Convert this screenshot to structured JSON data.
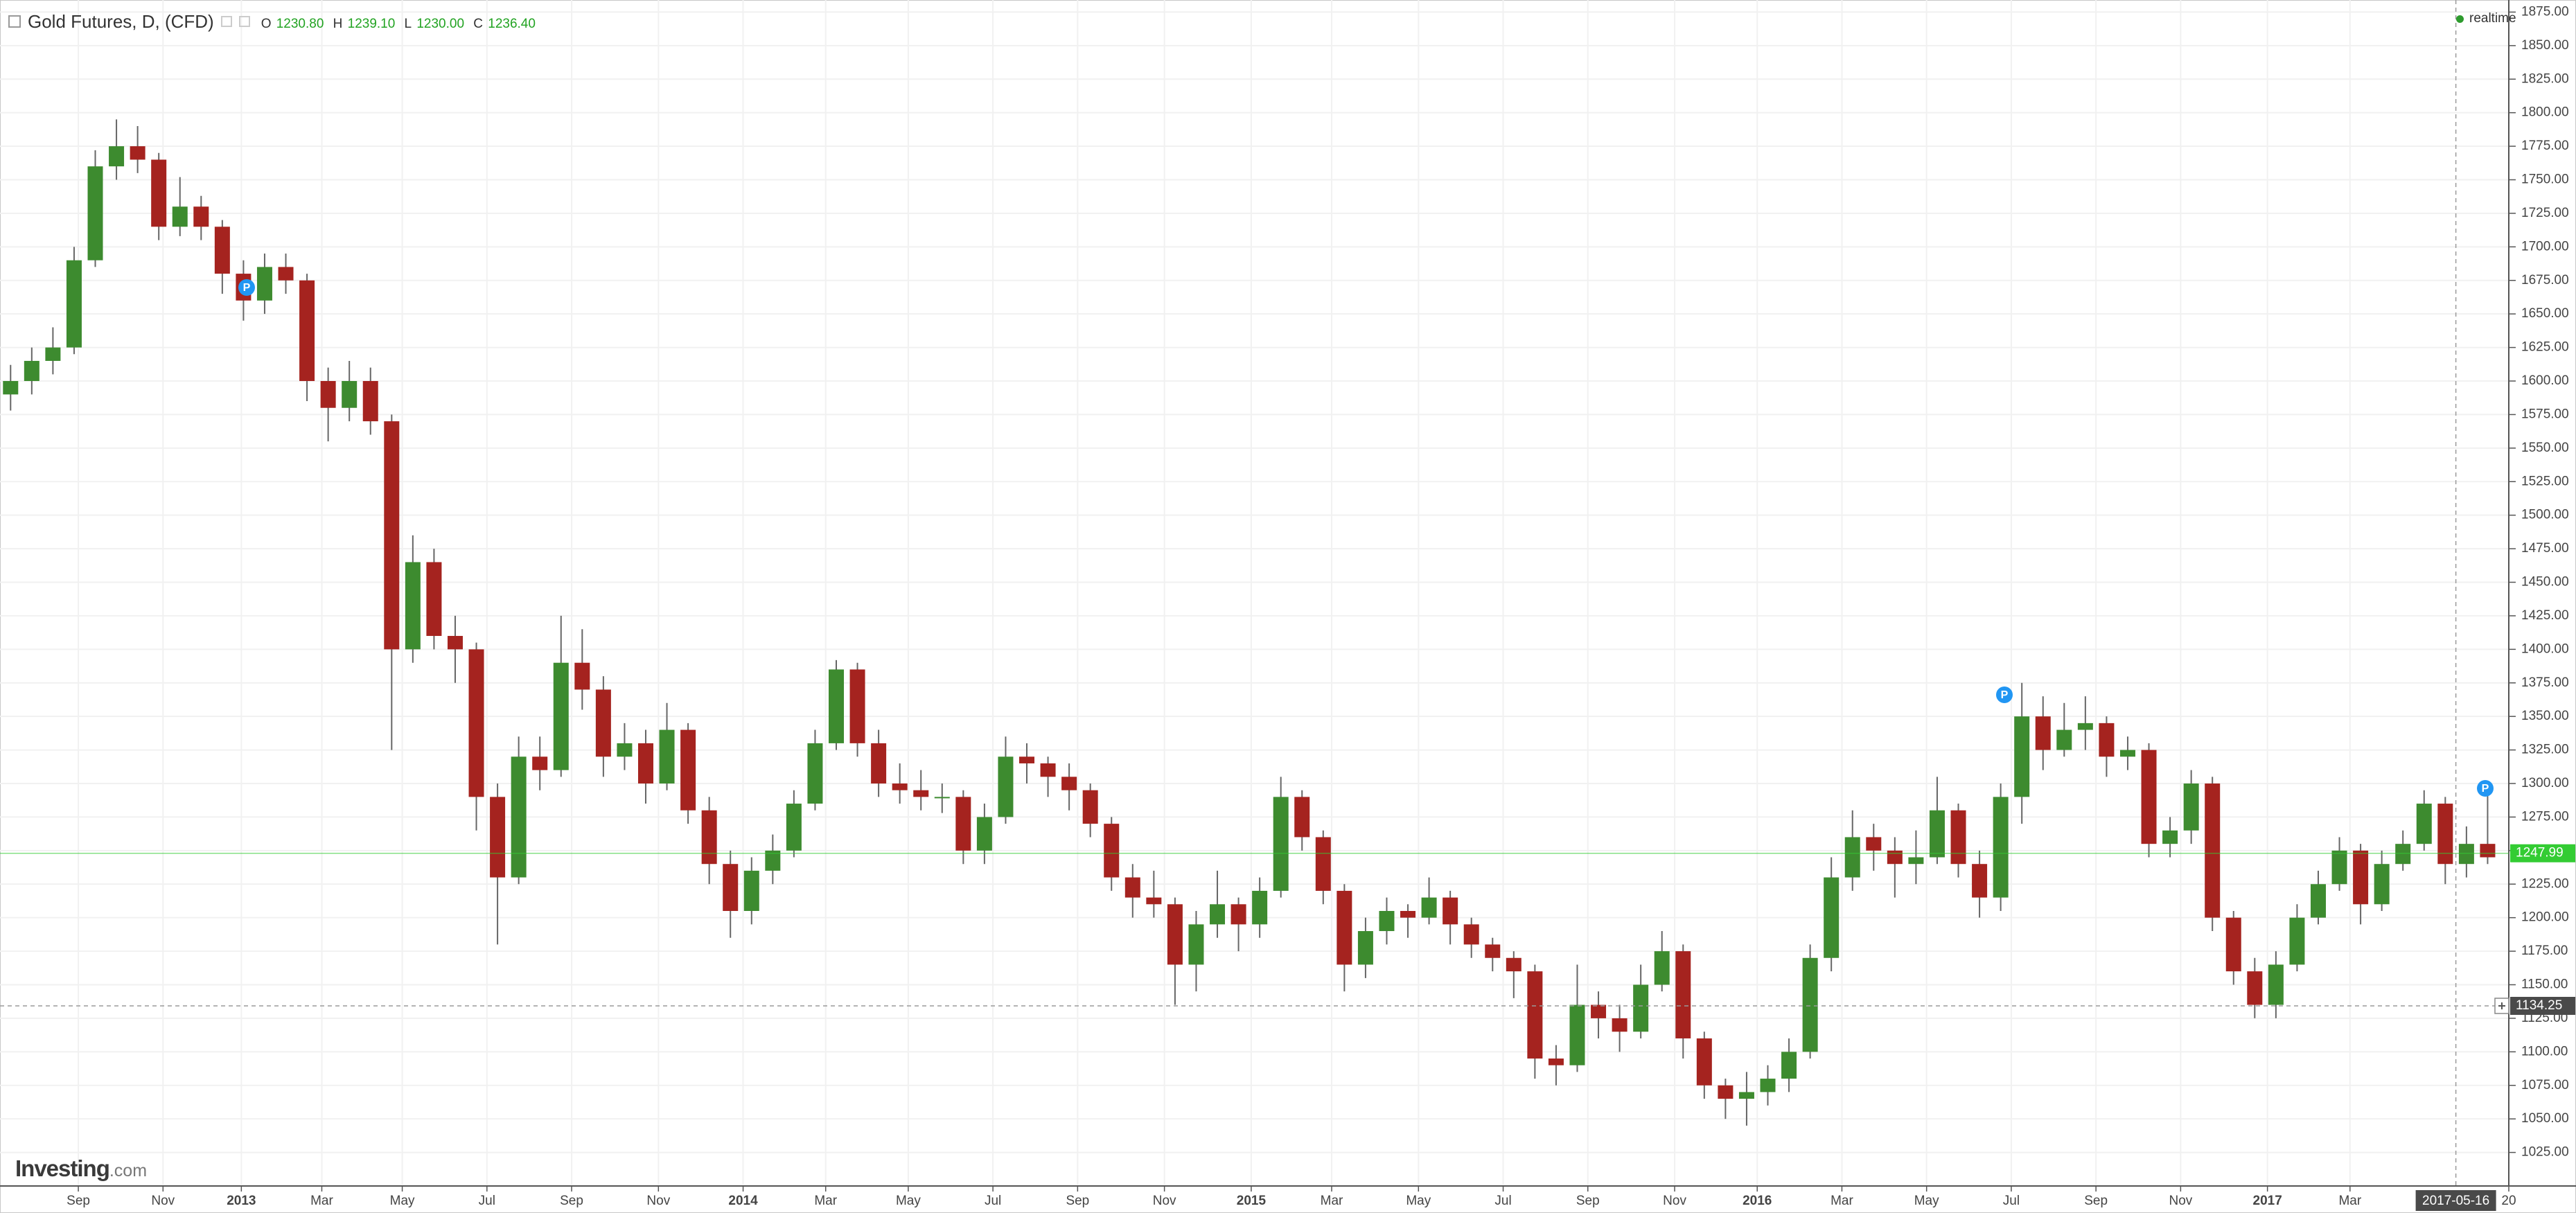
{
  "chart_data": {
    "type": "candlestick",
    "title": "Gold Futures, D, (CFD)",
    "ohlc_legend": [
      {
        "key": "O",
        "value": "1230.80"
      },
      {
        "key": "H",
        "value": "1239.10"
      },
      {
        "key": "L",
        "value": "1230.00"
      },
      {
        "key": "C",
        "value": "1236.40"
      }
    ],
    "realtime_label": "realtime",
    "brand": {
      "name": "Investing",
      "suffix": ".com"
    },
    "up_color": "#3d8b2f",
    "down_color": "#a5231f",
    "wick_color": "#666666",
    "grid": true,
    "ylim": [
      1000,
      1884
    ],
    "yticks": [
      {
        "value": 1025,
        "label": "1025.00"
      },
      {
        "value": 1050,
        "label": "1050.00"
      },
      {
        "value": 1075,
        "label": "1075.00"
      },
      {
        "value": 1100,
        "label": "1100.00"
      },
      {
        "value": 1125,
        "label": "1125.00"
      },
      {
        "value": 1150,
        "label": "1150.00"
      },
      {
        "value": 1175,
        "label": "1175.00"
      },
      {
        "value": 1200,
        "label": "1200.00"
      },
      {
        "value": 1225,
        "label": "1225.00"
      },
      {
        "value": 1250,
        "label": "1250.00"
      },
      {
        "value": 1275,
        "label": "1275.00"
      },
      {
        "value": 1300,
        "label": "1300.00"
      },
      {
        "value": 1325,
        "label": "1325.00"
      },
      {
        "value": 1350,
        "label": "1350.00"
      },
      {
        "value": 1375,
        "label": "1375.00"
      },
      {
        "value": 1400,
        "label": "1400.00"
      },
      {
        "value": 1425,
        "label": "1425.00"
      },
      {
        "value": 1450,
        "label": "1450.00"
      },
      {
        "value": 1475,
        "label": "1475.00"
      },
      {
        "value": 1500,
        "label": "1500.00"
      },
      {
        "value": 1525,
        "label": "1525.00"
      },
      {
        "value": 1550,
        "label": "1550.00"
      },
      {
        "value": 1575,
        "label": "1575.00"
      },
      {
        "value": 1600,
        "label": "1600.00"
      },
      {
        "value": 1625,
        "label": "1625.00"
      },
      {
        "value": 1650,
        "label": "1650.00"
      },
      {
        "value": 1675,
        "label": "1675.00"
      },
      {
        "value": 1700,
        "label": "1700.00"
      },
      {
        "value": 1725,
        "label": "1725.00"
      },
      {
        "value": 1750,
        "label": "1750.00"
      },
      {
        "value": 1775,
        "label": "1775.00"
      },
      {
        "value": 1800,
        "label": "1800.00"
      },
      {
        "value": 1825,
        "label": "1825.00"
      },
      {
        "value": 1850,
        "label": "1850.00"
      },
      {
        "value": 1875,
        "label": "1875.00"
      }
    ],
    "xlim": [
      0,
      118.5
    ],
    "xticks": [
      {
        "value": 3.7,
        "label": "Sep"
      },
      {
        "value": 7.7,
        "label": "Nov"
      },
      {
        "value": 11.4,
        "label": "2013"
      },
      {
        "value": 15.2,
        "label": "Mar"
      },
      {
        "value": 19,
        "label": "May"
      },
      {
        "value": 23,
        "label": "Jul"
      },
      {
        "value": 27,
        "label": "Sep"
      },
      {
        "value": 31.1,
        "label": "Nov"
      },
      {
        "value": 35.1,
        "label": "2014"
      },
      {
        "value": 39,
        "label": "Mar"
      },
      {
        "value": 42.9,
        "label": "May"
      },
      {
        "value": 46.9,
        "label": "Jul"
      },
      {
        "value": 50.9,
        "label": "Sep"
      },
      {
        "value": 55,
        "label": "Nov"
      },
      {
        "value": 59.1,
        "label": "2015"
      },
      {
        "value": 62.9,
        "label": "Mar"
      },
      {
        "value": 67,
        "label": "May"
      },
      {
        "value": 71,
        "label": "Jul"
      },
      {
        "value": 75,
        "label": "Sep"
      },
      {
        "value": 79.1,
        "label": "Nov"
      },
      {
        "value": 83,
        "label": "2016"
      },
      {
        "value": 87,
        "label": "Mar"
      },
      {
        "value": 91,
        "label": "May"
      },
      {
        "value": 95,
        "label": "Jul"
      },
      {
        "value": 99,
        "label": "Sep"
      },
      {
        "value": 103,
        "label": "Nov"
      },
      {
        "value": 107.1,
        "label": "2017"
      },
      {
        "value": 111,
        "label": "Mar"
      },
      {
        "value": 118.5,
        "label": "20"
      }
    ],
    "current_price": {
      "value": 1247.99,
      "label": "1247.99",
      "color": "#33cc33"
    },
    "crosshair": {
      "x": {
        "value": 116,
        "label": "2017-05-16"
      },
      "y": {
        "value": 1134.25,
        "label": "1134.25"
      }
    },
    "event_markers": [
      "P",
      "P",
      "P"
    ],
    "open": [
      1590,
      1600,
      1615,
      1625,
      1690,
      1760,
      1775,
      1765,
      1715,
      1730,
      1715,
      1680,
      1660,
      1685,
      1675,
      1600,
      1580,
      1600,
      1570,
      1400,
      1465,
      1410,
      1400,
      1290,
      1230,
      1320,
      1310,
      1390,
      1370,
      1320,
      1330,
      1300,
      1340,
      1280,
      1240,
      1205,
      1235,
      1250,
      1285,
      1330,
      1385,
      1330,
      1300,
      1295,
      1290,
      1290,
      1250,
      1275,
      1320,
      1315,
      1305,
      1295,
      1270,
      1230,
      1215,
      1210,
      1165,
      1195,
      1210,
      1195,
      1220,
      1290,
      1260,
      1220,
      1165,
      1190,
      1205,
      1200,
      1215,
      1195,
      1180,
      1170,
      1160,
      1095,
      1090,
      1135,
      1125,
      1115,
      1150,
      1175,
      1110,
      1075,
      1065,
      1070,
      1080,
      1100,
      1170,
      1230,
      1260,
      1250,
      1240,
      1245,
      1280,
      1240,
      1215,
      1290,
      1350,
      1325,
      1340,
      1345,
      1320,
      1325,
      1255,
      1265,
      1300,
      1200,
      1160,
      1135,
      1165,
      1200,
      1225,
      1250,
      1210,
      1240,
      1255,
      1285,
      1240,
      1255
    ],
    "high": [
      1612,
      1625,
      1640,
      1700,
      1772,
      1795,
      1790,
      1770,
      1752,
      1738,
      1720,
      1690,
      1695,
      1695,
      1680,
      1610,
      1615,
      1610,
      1575,
      1485,
      1475,
      1425,
      1405,
      1300,
      1335,
      1335,
      1425,
      1415,
      1380,
      1345,
      1340,
      1360,
      1345,
      1290,
      1250,
      1245,
      1262,
      1295,
      1340,
      1392,
      1390,
      1340,
      1315,
      1310,
      1300,
      1295,
      1285,
      1335,
      1330,
      1320,
      1315,
      1300,
      1275,
      1240,
      1235,
      1215,
      1205,
      1235,
      1215,
      1230,
      1305,
      1295,
      1265,
      1225,
      1200,
      1215,
      1210,
      1230,
      1220,
      1200,
      1185,
      1175,
      1165,
      1105,
      1165,
      1145,
      1135,
      1165,
      1190,
      1180,
      1115,
      1080,
      1085,
      1090,
      1110,
      1180,
      1245,
      1280,
      1270,
      1260,
      1265,
      1305,
      1285,
      1250,
      1300,
      1375,
      1365,
      1360,
      1365,
      1350,
      1335,
      1330,
      1275,
      1310,
      1305,
      1205,
      1170,
      1175,
      1210,
      1235,
      1260,
      1255,
      1250,
      1265,
      1295,
      1290,
      1268,
      1298
    ],
    "low": [
      1578,
      1590,
      1605,
      1620,
      1685,
      1750,
      1755,
      1705,
      1708,
      1705,
      1665,
      1645,
      1650,
      1665,
      1585,
      1555,
      1570,
      1560,
      1325,
      1390,
      1400,
      1375,
      1265,
      1180,
      1225,
      1295,
      1305,
      1355,
      1305,
      1310,
      1285,
      1295,
      1270,
      1225,
      1185,
      1195,
      1225,
      1245,
      1280,
      1325,
      1320,
      1290,
      1285,
      1280,
      1278,
      1240,
      1240,
      1270,
      1300,
      1290,
      1280,
      1260,
      1220,
      1200,
      1200,
      1135,
      1145,
      1185,
      1175,
      1185,
      1215,
      1250,
      1210,
      1145,
      1155,
      1180,
      1185,
      1195,
      1180,
      1170,
      1160,
      1140,
      1080,
      1075,
      1085,
      1110,
      1100,
      1110,
      1145,
      1095,
      1065,
      1050,
      1045,
      1060,
      1070,
      1095,
      1160,
      1220,
      1235,
      1215,
      1225,
      1240,
      1230,
      1200,
      1205,
      1270,
      1310,
      1320,
      1325,
      1305,
      1310,
      1245,
      1245,
      1255,
      1190,
      1150,
      1125,
      1125,
      1160,
      1195,
      1220,
      1195,
      1205,
      1235,
      1250,
      1225,
      1230,
      1240
    ],
    "close": [
      1600,
      1615,
      1625,
      1690,
      1760,
      1775,
      1765,
      1715,
      1730,
      1715,
      1680,
      1660,
      1685,
      1675,
      1600,
      1580,
      1600,
      1570,
      1400,
      1465,
      1410,
      1400,
      1290,
      1230,
      1320,
      1310,
      1390,
      1370,
      1320,
      1330,
      1300,
      1340,
      1280,
      1240,
      1205,
      1235,
      1250,
      1285,
      1330,
      1385,
      1330,
      1300,
      1295,
      1290,
      1290,
      1250,
      1275,
      1320,
      1315,
      1305,
      1295,
      1270,
      1230,
      1215,
      1210,
      1165,
      1195,
      1210,
      1195,
      1220,
      1290,
      1260,
      1220,
      1165,
      1190,
      1205,
      1200,
      1215,
      1195,
      1180,
      1170,
      1160,
      1095,
      1090,
      1135,
      1125,
      1115,
      1150,
      1175,
      1110,
      1075,
      1065,
      1070,
      1080,
      1100,
      1170,
      1230,
      1260,
      1250,
      1240,
      1245,
      1280,
      1240,
      1215,
      1290,
      1350,
      1325,
      1340,
      1345,
      1320,
      1325,
      1255,
      1265,
      1300,
      1200,
      1160,
      1135,
      1165,
      1200,
      1225,
      1250,
      1210,
      1240,
      1255,
      1285,
      1240,
      1255,
      1245
    ]
  }
}
